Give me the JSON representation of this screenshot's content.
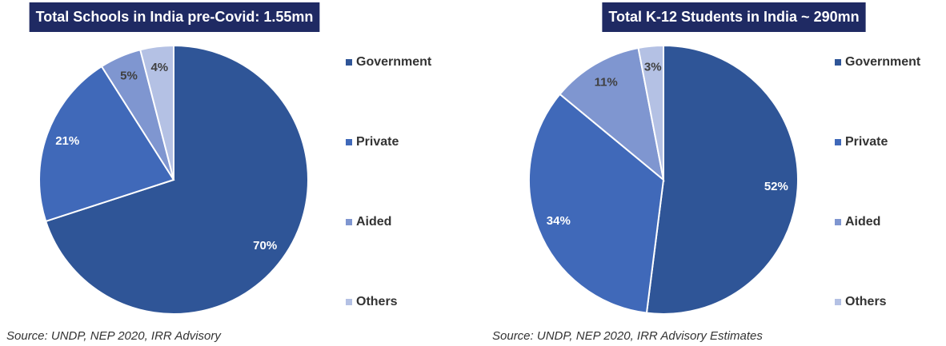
{
  "chart_data": [
    {
      "type": "pie",
      "title": "Total Schools in India pre-Covid: 1.55mn",
      "categories": [
        "Government",
        "Private",
        "Aided",
        "Others"
      ],
      "values": [
        70,
        21,
        5,
        4
      ],
      "value_labels": [
        "70%",
        "21%",
        "5%",
        "4%"
      ],
      "colors": [
        "#2f5597",
        "#4069b9",
        "#7f96d0",
        "#b4c1e4"
      ],
      "label_colors": [
        "#ffffff",
        "#ffffff",
        "#404040",
        "#404040"
      ],
      "legend": "right",
      "source": "Source: UNDP, NEP 2020, IRR Advisory"
    },
    {
      "type": "pie",
      "title": "Total K-12 Students in India ~ 290mn",
      "categories": [
        "Government",
        "Private",
        "Aided",
        "Others"
      ],
      "values": [
        52,
        34,
        11,
        3
      ],
      "value_labels": [
        "52%",
        "34%",
        "11%",
        "3%"
      ],
      "colors": [
        "#2f5597",
        "#4069b9",
        "#7f96d0",
        "#b4c1e4"
      ],
      "label_colors": [
        "#ffffff",
        "#ffffff",
        "#404040",
        "#404040"
      ],
      "legend": "right",
      "source": "Source: UNDP, NEP 2020, IRR Advisory Estimates"
    }
  ]
}
